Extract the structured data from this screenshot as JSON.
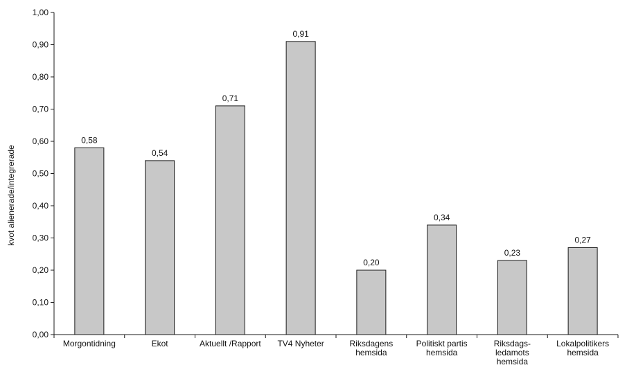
{
  "chart_data": {
    "type": "bar",
    "title": "",
    "xlabel": "",
    "ylabel": "kvot alienerade/integrerade",
    "ylim": [
      0,
      1.0
    ],
    "yticks": [
      "0,00",
      "0,10",
      "0,20",
      "0,30",
      "0,40",
      "0,50",
      "0,60",
      "0,70",
      "0,80",
      "0,90",
      "1,00"
    ],
    "categories": [
      [
        "Morgontidning"
      ],
      [
        "Ekot"
      ],
      [
        "Aktuellt /Rapport"
      ],
      [
        "TV4 Nyheter"
      ],
      [
        "Riksdagens",
        "hemsida"
      ],
      [
        "Politiskt partis",
        "hemsida"
      ],
      [
        "Riksdags-",
        "ledamots",
        "hemsida"
      ],
      [
        "Lokalpolitikers",
        "hemsida"
      ]
    ],
    "values": [
      0.58,
      0.54,
      0.71,
      0.91,
      0.2,
      0.34,
      0.23,
      0.27
    ],
    "value_labels": [
      "0,58",
      "0,54",
      "0,71",
      "0,91",
      "0,20",
      "0,34",
      "0,23",
      "0,27"
    ],
    "grid": false,
    "legend": "none",
    "colors": {
      "bar_fill": "#c8c8c8",
      "bar_stroke": "#1a1a1a",
      "axis": "#1a1a1a"
    }
  }
}
